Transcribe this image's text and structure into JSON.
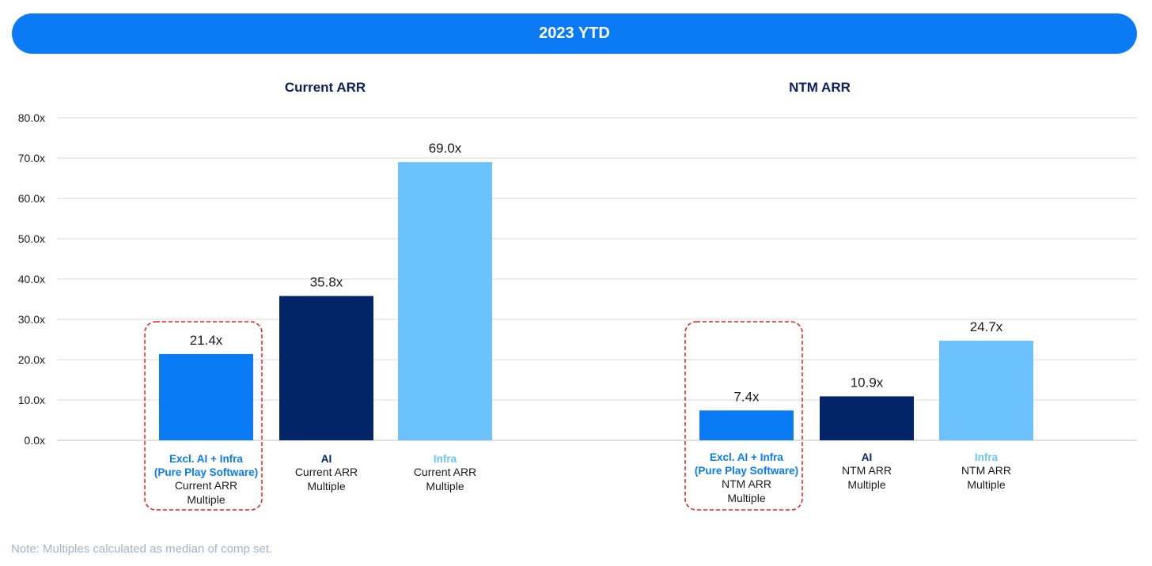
{
  "banner": {
    "title": "2023 YTD"
  },
  "note": "Note: Multiples calculated as median of comp set.",
  "colors": {
    "excl": "#0a7bf5",
    "ai": "#012566",
    "infra": "#6cc2fc",
    "panel_title": "#0b1f5c",
    "grid": "#d9d9d9",
    "highlight": "#e0201c"
  },
  "chart_data": [
    {
      "type": "bar",
      "title": "Current ARR",
      "ylim": [
        0,
        80
      ],
      "yticks": [
        "0.0x",
        "10.0x",
        "20.0x",
        "30.0x",
        "40.0x",
        "50.0x",
        "60.0x",
        "70.0x",
        "80.0x"
      ],
      "bars": [
        {
          "key": "excl",
          "name": "Excl. AI + Infra",
          "name2": "(Pure Play Software)",
          "sub1": "Current ARR",
          "sub2": "Multiple",
          "value": 21.4,
          "label": "21.4x",
          "highlighted": true
        },
        {
          "key": "ai",
          "name": "AI",
          "name2": "",
          "sub1": "Current ARR",
          "sub2": "Multiple",
          "value": 35.8,
          "label": "35.8x",
          "highlighted": false
        },
        {
          "key": "infra",
          "name": "Infra",
          "name2": "",
          "sub1": "Current ARR",
          "sub2": "Multiple",
          "value": 69.0,
          "label": "69.0x",
          "highlighted": false
        }
      ]
    },
    {
      "type": "bar",
      "title": "NTM ARR",
      "ylim": [
        0,
        80
      ],
      "bars": [
        {
          "key": "excl",
          "name": "Excl. AI + Infra",
          "name2": "(Pure Play Software)",
          "sub1": "NTM ARR",
          "sub2": "Multiple",
          "value": 7.4,
          "label": "7.4x",
          "highlighted": true
        },
        {
          "key": "ai",
          "name": "AI",
          "name2": "",
          "sub1": "NTM ARR",
          "sub2": "Multiple",
          "value": 10.9,
          "label": "10.9x",
          "highlighted": false
        },
        {
          "key": "infra",
          "name": "Infra",
          "name2": "",
          "sub1": "NTM ARR",
          "sub2": "Multiple",
          "value": 24.7,
          "label": "24.7x",
          "highlighted": false
        }
      ]
    }
  ]
}
